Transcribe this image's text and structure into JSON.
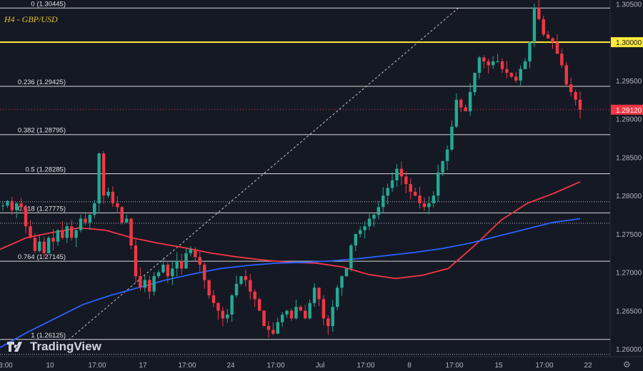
{
  "chart_data": {
    "type": "candlestick",
    "symbol": "H4 - GBP/USD",
    "ylim": [
      1.259,
      1.3055
    ],
    "y_ticks": [
      "1.30500",
      "1.30000",
      "1.29500",
      "1.29000",
      "1.28500",
      "1.28000",
      "1.27500",
      "1.27000",
      "1.26500",
      "1.26000"
    ],
    "x_ticks": [
      "3:00",
      "10",
      "17:00",
      "17",
      "17:00",
      "24",
      "17:00",
      "Jul",
      "17:00",
      "8",
      "17:00",
      "15",
      "17:00",
      "22"
    ],
    "current_price": "1.29120",
    "key_level": "1.30000",
    "fib_levels": [
      {
        "label": "0 (1.30445)",
        "value": 1.30445
      },
      {
        "label": "0.236 (1.29425)",
        "value": 1.29425
      },
      {
        "label": "0.382 (1.28795)",
        "value": 1.28795
      },
      {
        "label": "0.5 (1.28285)",
        "value": 1.28285
      },
      {
        "label": "0.618 (1.27775)",
        "value": 1.27775
      },
      {
        "label": "0.764 (1.27145)",
        "value": 1.27145
      },
      {
        "label": "1 (1.26125)",
        "value": 1.26125
      }
    ],
    "extra_levels": [
      1.2792,
      1.2764,
      1.2593
    ],
    "close_path": [
      1.2787,
      1.2793,
      1.2781,
      1.279,
      1.2785,
      1.276,
      1.2745,
      1.2728,
      1.274,
      1.2725,
      1.2745,
      1.274,
      1.2755,
      1.2745,
      1.276,
      1.2745,
      1.2755,
      1.277,
      1.2765,
      1.2775,
      1.279,
      1.2855,
      1.28,
      1.2805,
      1.279,
      1.2785,
      1.2765,
      1.277,
      1.2735,
      1.2695,
      1.268,
      1.269,
      1.2675,
      1.2695,
      1.27,
      1.271,
      1.2695,
      1.2705,
      1.2715,
      1.2705,
      1.2725,
      1.273,
      1.272,
      1.271,
      1.269,
      1.267,
      1.266,
      1.265,
      1.264,
      1.2645,
      1.267,
      1.2685,
      1.2695,
      1.269,
      1.2675,
      1.2665,
      1.265,
      1.263,
      1.2625,
      1.262,
      1.2635,
      1.2645,
      1.265,
      1.264,
      1.2655,
      1.265,
      1.264,
      1.266,
      1.268,
      1.2665,
      1.264,
      1.263,
      1.2655,
      1.268,
      1.2695,
      1.2705,
      1.2735,
      1.275,
      1.2755,
      1.276,
      1.277,
      1.2775,
      1.2785,
      1.28,
      1.281,
      1.282,
      1.2835,
      1.2825,
      1.2815,
      1.2805,
      1.28,
      1.279,
      1.2785,
      1.279,
      1.28,
      1.283,
      1.2845,
      1.286,
      1.289,
      1.2925,
      1.2915,
      1.291,
      1.2935,
      1.296,
      1.298,
      1.2975,
      1.297,
      1.2975,
      1.2975,
      1.2965,
      1.296,
      1.2955,
      1.295,
      1.2965,
      1.2975,
      1.3,
      1.3045,
      1.303,
      1.301,
      1.3005,
      1.3,
      1.2985,
      1.297,
      1.2945,
      1.2935,
      1.2925,
      1.2912
    ],
    "series": [
      {
        "name": "",
        "color": "#f23645",
        "values": [
          1.273,
          1.2745,
          1.2752,
          1.2758,
          1.2755,
          1.2745,
          1.2738,
          1.2732,
          1.2725,
          1.272,
          1.2716,
          1.2713,
          1.2712,
          1.2707,
          1.2697,
          1.2692,
          1.2696,
          1.2705,
          1.2735,
          1.2768,
          1.279,
          1.2803,
          1.2818
        ]
      },
      {
        "name": "",
        "color": "#2962ff",
        "values": [
          1.2602,
          1.2622,
          1.264,
          1.2658,
          1.267,
          1.268,
          1.269,
          1.2698,
          1.2705,
          1.2709,
          1.2712,
          1.2713,
          1.2715,
          1.2718,
          1.2722,
          1.2726,
          1.2731,
          1.2738,
          1.2747,
          1.2756,
          1.2765,
          1.277
        ]
      }
    ]
  },
  "brand": {
    "name": "TradingView"
  }
}
